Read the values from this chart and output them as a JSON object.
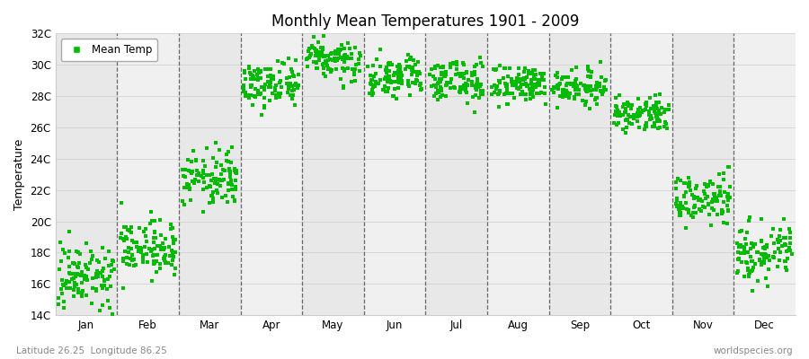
{
  "title": "Monthly Mean Temperatures 1901 - 2009",
  "ylabel": "Temperature",
  "footer_left": "Latitude 26.25  Longitude 86.25",
  "footer_right": "worldspecies.org",
  "legend_label": "Mean Temp",
  "dot_color": "#00bb00",
  "dot_size": 10,
  "ylim": [
    14,
    32
  ],
  "ytick_labels": [
    "14C",
    "16C",
    "18C",
    "20C",
    "22C",
    "24C",
    "26C",
    "28C",
    "30C",
    "32C"
  ],
  "ytick_values": [
    14,
    16,
    18,
    20,
    22,
    24,
    26,
    28,
    30,
    32
  ],
  "month_names": [
    "Jan",
    "Feb",
    "Mar",
    "Apr",
    "May",
    "Jun",
    "Jul",
    "Aug",
    "Sep",
    "Oct",
    "Nov",
    "Dec"
  ],
  "month_centers": [
    0.5,
    1.5,
    2.5,
    3.5,
    4.5,
    5.5,
    6.5,
    7.5,
    8.5,
    9.5,
    10.5,
    11.5
  ],
  "month_boundaries": [
    1.0,
    2.0,
    3.0,
    4.0,
    5.0,
    6.0,
    7.0,
    8.0,
    9.0,
    10.0,
    11.0
  ],
  "xlim": [
    0,
    12
  ],
  "background_color": "#ffffff",
  "band_colors": [
    "#e8e8e8",
    "#f0f0f0"
  ],
  "monthly_means": [
    16.5,
    18.2,
    22.8,
    28.8,
    30.5,
    29.2,
    29.0,
    28.8,
    28.6,
    26.8,
    21.5,
    17.8
  ],
  "monthly_std": [
    1.0,
    0.8,
    0.9,
    0.7,
    0.6,
    0.6,
    0.55,
    0.55,
    0.5,
    0.5,
    0.7,
    0.9
  ],
  "n_years": 109
}
